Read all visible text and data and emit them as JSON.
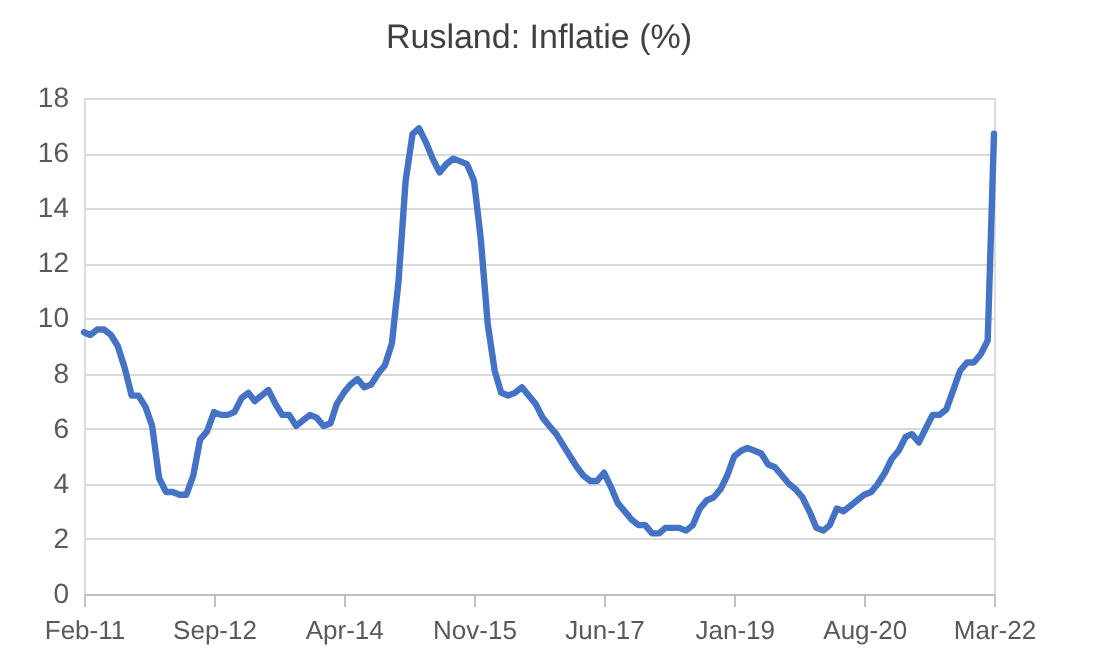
{
  "chart_data": {
    "type": "line",
    "title": "Rusland: Inflatie (%)",
    "x": [
      "2011-02",
      "2011-03",
      "2011-04",
      "2011-05",
      "2011-06",
      "2011-07",
      "2011-08",
      "2011-09",
      "2011-10",
      "2011-11",
      "2011-12",
      "2012-01",
      "2012-02",
      "2012-03",
      "2012-04",
      "2012-05",
      "2012-06",
      "2012-07",
      "2012-08",
      "2012-09",
      "2012-10",
      "2012-11",
      "2012-12",
      "2013-01",
      "2013-02",
      "2013-03",
      "2013-04",
      "2013-05",
      "2013-06",
      "2013-07",
      "2013-08",
      "2013-09",
      "2013-10",
      "2013-11",
      "2013-12",
      "2014-01",
      "2014-02",
      "2014-03",
      "2014-04",
      "2014-05",
      "2014-06",
      "2014-07",
      "2014-08",
      "2014-09",
      "2014-10",
      "2014-11",
      "2014-12",
      "2015-01",
      "2015-02",
      "2015-03",
      "2015-04",
      "2015-05",
      "2015-06",
      "2015-07",
      "2015-08",
      "2015-09",
      "2015-10",
      "2015-11",
      "2015-12",
      "2016-01",
      "2016-02",
      "2016-03",
      "2016-04",
      "2016-05",
      "2016-06",
      "2016-07",
      "2016-08",
      "2016-09",
      "2016-10",
      "2016-11",
      "2016-12",
      "2017-01",
      "2017-02",
      "2017-03",
      "2017-04",
      "2017-05",
      "2017-06",
      "2017-07",
      "2017-08",
      "2017-09",
      "2017-10",
      "2017-11",
      "2017-12",
      "2018-01",
      "2018-02",
      "2018-03",
      "2018-04",
      "2018-05",
      "2018-06",
      "2018-07",
      "2018-08",
      "2018-09",
      "2018-10",
      "2018-11",
      "2018-12",
      "2019-01",
      "2019-02",
      "2019-03",
      "2019-04",
      "2019-05",
      "2019-06",
      "2019-07",
      "2019-08",
      "2019-09",
      "2019-10",
      "2019-11",
      "2019-12",
      "2020-01",
      "2020-02",
      "2020-03",
      "2020-04",
      "2020-05",
      "2020-06",
      "2020-07",
      "2020-08",
      "2020-09",
      "2020-10",
      "2020-11",
      "2020-12",
      "2021-01",
      "2021-02",
      "2021-03",
      "2021-04",
      "2021-05",
      "2021-06",
      "2021-07",
      "2021-08",
      "2021-09",
      "2021-10",
      "2021-11",
      "2021-12",
      "2022-01",
      "2022-02",
      "2022-03"
    ],
    "series": [
      {
        "color": "#4472c4",
        "values": [
          9.5,
          9.4,
          9.6,
          9.6,
          9.4,
          9.0,
          8.2,
          7.2,
          7.2,
          6.8,
          6.1,
          4.2,
          3.7,
          3.7,
          3.6,
          3.6,
          4.3,
          5.6,
          5.9,
          6.6,
          6.5,
          6.5,
          6.6,
          7.1,
          7.3,
          7.0,
          7.2,
          7.4,
          6.9,
          6.5,
          6.5,
          6.1,
          6.3,
          6.5,
          6.4,
          6.1,
          6.2,
          6.9,
          7.3,
          7.6,
          7.8,
          7.5,
          7.6,
          8.0,
          8.3,
          9.1,
          11.4,
          15.0,
          16.7,
          16.9,
          16.4,
          15.8,
          15.3,
          15.6,
          15.8,
          15.7,
          15.6,
          15.0,
          12.9,
          9.8,
          8.1,
          7.3,
          7.2,
          7.3,
          7.5,
          7.2,
          6.9,
          6.4,
          6.1,
          5.8,
          5.4,
          5.0,
          4.6,
          4.3,
          4.1,
          4.1,
          4.4,
          3.9,
          3.3,
          3.0,
          2.7,
          2.5,
          2.5,
          2.2,
          2.2,
          2.4,
          2.4,
          2.4,
          2.3,
          2.5,
          3.1,
          3.4,
          3.5,
          3.8,
          4.3,
          5.0,
          5.2,
          5.3,
          5.2,
          5.1,
          4.7,
          4.6,
          4.3,
          4.0,
          3.8,
          3.5,
          3.0,
          2.4,
          2.3,
          2.5,
          3.1,
          3.0,
          3.2,
          3.4,
          3.6,
          3.7,
          4.0,
          4.4,
          4.9,
          5.2,
          5.7,
          5.8,
          5.5,
          6.0,
          6.5,
          6.5,
          6.7,
          7.4,
          8.1,
          8.4,
          8.4,
          8.7,
          9.2,
          16.7
        ]
      }
    ],
    "xlim": [
      "2011-02",
      "2022-03"
    ],
    "xticks": [
      {
        "value": "2011-02",
        "label": "Feb-11"
      },
      {
        "value": "2012-09",
        "label": "Sep-12"
      },
      {
        "value": "2014-04",
        "label": "Apr-14"
      },
      {
        "value": "2015-11",
        "label": "Nov-15"
      },
      {
        "value": "2017-06",
        "label": "Jun-17"
      },
      {
        "value": "2019-01",
        "label": "Jan-19"
      },
      {
        "value": "2020-08",
        "label": "Aug-20"
      },
      {
        "value": "2022-03",
        "label": "Mar-22"
      }
    ],
    "ylim": [
      0,
      18
    ],
    "yticks": [
      0,
      2,
      4,
      6,
      8,
      10,
      12,
      14,
      16,
      18
    ],
    "grid": "y",
    "legend": false,
    "marker": "none",
    "line_style": "solid"
  }
}
